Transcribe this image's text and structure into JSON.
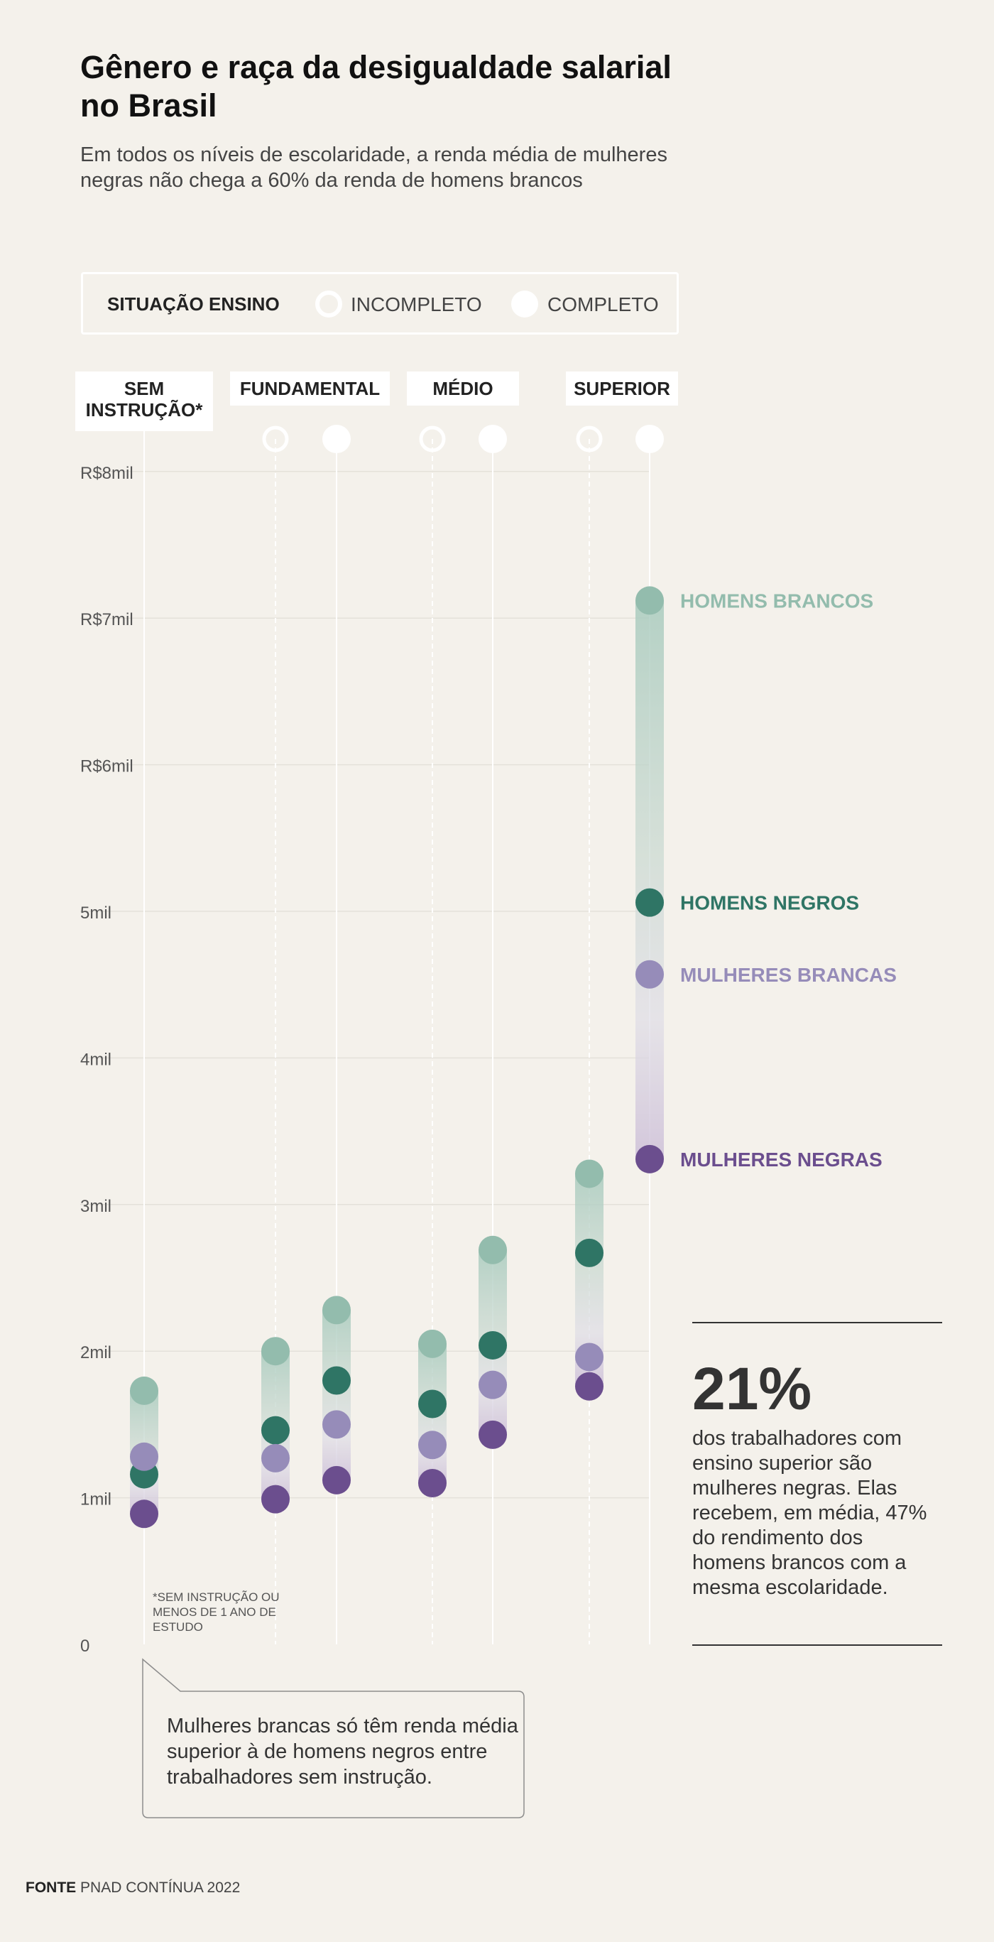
{
  "title": "Gênero e raça da desigualdade salarial no Brasil",
  "subtitle": "Em todos os níveis de escolaridade, a renda média de mulheres negras não chega a 60% da renda de homens brancos",
  "legend": {
    "title": "SITUAÇÃO ENSINO",
    "incomplete": "INCOMPLETO",
    "complete": "COMPLETO"
  },
  "categories": [
    {
      "label": "SEM INSTRUÇÃO*"
    },
    {
      "label": "FUNDAMENTAL"
    },
    {
      "label": "MÉDIO"
    },
    {
      "label": "SUPERIOR"
    }
  ],
  "colors": {
    "homens_brancos": "#93bcad",
    "homens_negros": "#2f7565",
    "mulheres_brancas": "#968cb9",
    "mulheres_negras": "#6b4e8e",
    "background": "#f4f1eb"
  },
  "chart_data": {
    "type": "scatter",
    "y_tick_labels": [
      "0",
      "1mil",
      "2mil",
      "3mil",
      "4mil",
      "5mil",
      "R$6mil",
      "R$7mil",
      "R$8mil"
    ],
    "y_ticks": [
      0,
      1000,
      2000,
      3000,
      4000,
      5000,
      6000,
      7000,
      8000
    ],
    "ylim": [
      0,
      8000
    ],
    "columns": [
      {
        "category": "SEM INSTRUÇÃO*",
        "status": "",
        "homens_brancos": 1730,
        "homens_negros": 1160,
        "mulheres_brancas": 1280,
        "mulheres_negras": 890
      },
      {
        "category": "FUNDAMENTAL",
        "status": "INCOMPLETO",
        "homens_brancos": 2000,
        "homens_negros": 1460,
        "mulheres_brancas": 1270,
        "mulheres_negras": 990
      },
      {
        "category": "FUNDAMENTAL",
        "status": "COMPLETO",
        "homens_brancos": 2280,
        "homens_negros": 1800,
        "mulheres_brancas": 1500,
        "mulheres_negras": 1120
      },
      {
        "category": "MÉDIO",
        "status": "INCOMPLETO",
        "homens_brancos": 2050,
        "homens_negros": 1640,
        "mulheres_brancas": 1360,
        "mulheres_negras": 1100
      },
      {
        "category": "MÉDIO",
        "status": "COMPLETO",
        "homens_brancos": 2690,
        "homens_negros": 2040,
        "mulheres_brancas": 1770,
        "mulheres_negras": 1430
      },
      {
        "category": "SUPERIOR",
        "status": "INCOMPLETO",
        "homens_brancos": 3210,
        "homens_negros": 2670,
        "mulheres_brancas": 1960,
        "mulheres_negras": 1760
      },
      {
        "category": "SUPERIOR",
        "status": "COMPLETO",
        "homens_brancos": 7120,
        "homens_negros": 5060,
        "mulheres_brancas": 4570,
        "mulheres_negras": 3310
      }
    ],
    "series_labels": {
      "homens_brancos": "HOMENS BRANCOS",
      "homens_negros": "HOMENS NEGROS",
      "mulheres_brancas": "MULHERES BRANCAS",
      "mulheres_negras": "MULHERES NEGRAS"
    }
  },
  "footnote": "*sem instrução ou menos de 1 ano de estudo",
  "callout": "Mulheres brancas só têm renda média superior à de homens negros entre trabalhadores sem instrução.",
  "stat": {
    "value": "21%",
    "text": "dos trabalhadores com ensino superior são mulheres negras. Elas recebem, em média, 47% do rendimento dos homens brancos com a mesma escolaridade."
  },
  "source": {
    "label": "FONTE",
    "text": "PNAD CONTÍNUA 2022"
  }
}
